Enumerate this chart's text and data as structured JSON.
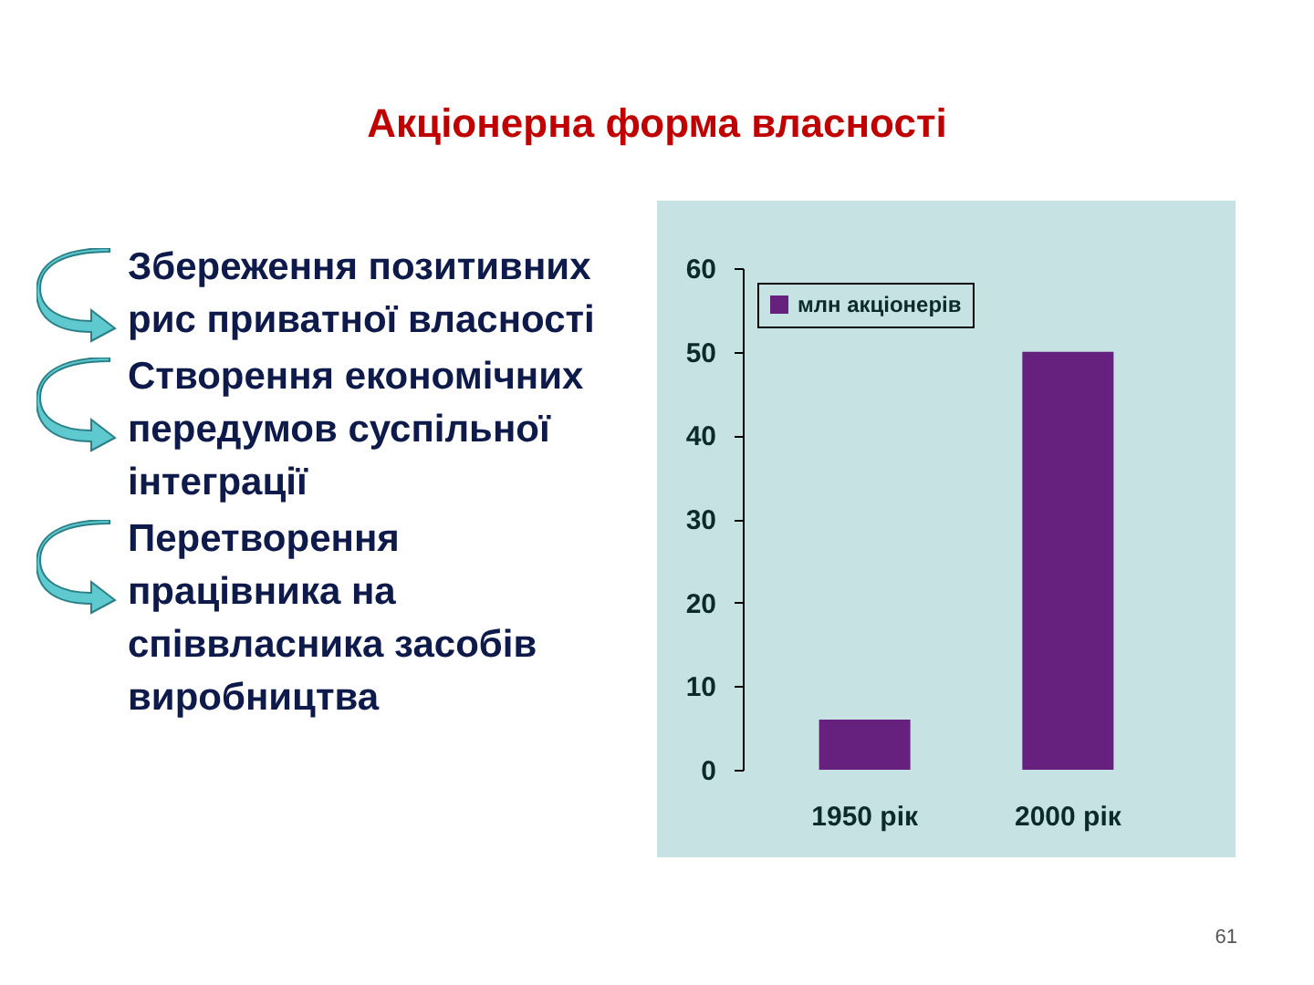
{
  "chart_data": {
    "type": "bar",
    "title": "Акціонерна форма власності",
    "categories": [
      "1950 рік",
      "2000 рік"
    ],
    "series": [
      {
        "name": "млн акціонерів",
        "color": "#66207e",
        "values": [
          6,
          50
        ]
      }
    ],
    "ylim": [
      0,
      60
    ],
    "yticks": [
      0,
      10,
      20,
      30,
      40,
      50,
      60
    ],
    "grid": false,
    "legend": "top left",
    "annotations": [
      "Збереження позитивних рис приватної власності",
      "Створення економічних передумов суспільної інтеграції",
      "Перетворення працівника на співвласника засобів виробництва",
      "61"
    ]
  }
}
